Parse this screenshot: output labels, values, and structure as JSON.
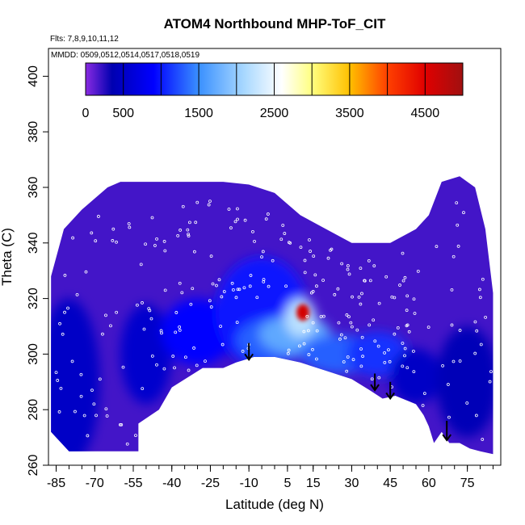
{
  "chart_data": {
    "type": "heatmap",
    "title": "ATOM4 Northbound MHP-ToF_CIT",
    "flights_note": "Flts: 7,8,9,10,11,12",
    "dates_note": "MMDD: 0509,0512,0514,0517,0518,0519",
    "xlabel": "Latitude (deg N)",
    "ylabel": "Theta (C)",
    "xlim": [
      -88,
      88
    ],
    "ylim": [
      260,
      410
    ],
    "x_ticks": [
      -85,
      -70,
      -55,
      -40,
      -25,
      -10,
      5,
      15,
      30,
      45,
      60,
      75
    ],
    "x_ticks_minor_step": 5,
    "y_ticks": [
      260,
      280,
      300,
      320,
      340,
      360,
      380,
      400
    ],
    "colorbar": {
      "range": [
        0,
        5000
      ],
      "labels": [
        0,
        500,
        1500,
        2500,
        3500,
        4500
      ],
      "divisions": [
        500,
        1000,
        1500,
        2000,
        2500,
        3000,
        3500,
        4000,
        4500
      ],
      "stops": [
        {
          "v": 0,
          "c": "#8a2be2"
        },
        {
          "v": 350,
          "c": "#0000b0"
        },
        {
          "v": 900,
          "c": "#0000ff"
        },
        {
          "v": 1500,
          "c": "#3a90ff"
        },
        {
          "v": 2100,
          "c": "#a8d8ff"
        },
        {
          "v": 2600,
          "c": "#ffffff"
        },
        {
          "v": 3000,
          "c": "#ffff80"
        },
        {
          "v": 3500,
          "c": "#ffc000"
        },
        {
          "v": 4000,
          "c": "#ff4000"
        },
        {
          "v": 4500,
          "c": "#e00000"
        },
        {
          "v": 5000,
          "c": "#a01010"
        }
      ]
    },
    "field_top_boundary": [
      [
        -87,
        328
      ],
      [
        -82,
        345
      ],
      [
        -75,
        352
      ],
      [
        -70,
        356
      ],
      [
        -65,
        360
      ],
      [
        -60,
        362
      ],
      [
        -20,
        362
      ],
      [
        -10,
        361
      ],
      [
        0,
        358
      ],
      [
        10,
        350
      ],
      [
        20,
        345
      ],
      [
        30,
        340
      ],
      [
        45,
        340
      ],
      [
        55,
        345
      ],
      [
        60,
        350
      ],
      [
        65,
        362
      ],
      [
        72,
        364
      ],
      [
        78,
        360
      ],
      [
        82,
        345
      ],
      [
        85,
        322
      ]
    ],
    "field_bottom_boundary": [
      [
        -87,
        272
      ],
      [
        -80,
        265
      ],
      [
        -53,
        265
      ],
      [
        -53,
        275
      ],
      [
        -45,
        280
      ],
      [
        -40,
        288
      ],
      [
        -28,
        295
      ],
      [
        -20,
        295
      ],
      [
        -15,
        297
      ],
      [
        -8,
        299
      ],
      [
        0,
        299
      ],
      [
        10,
        297
      ],
      [
        20,
        294
      ],
      [
        30,
        291
      ],
      [
        37,
        287
      ],
      [
        42,
        284
      ],
      [
        47,
        285
      ],
      [
        55,
        282
      ],
      [
        58,
        278
      ],
      [
        60,
        274
      ],
      [
        62,
        268
      ],
      [
        65,
        272
      ],
      [
        68,
        268
      ],
      [
        72,
        268
      ],
      [
        76,
        266
      ],
      [
        80,
        265
      ],
      [
        85,
        264
      ]
    ],
    "concentration_blobs": [
      {
        "lat": -80,
        "theta": 290,
        "value": 500,
        "rx": 12,
        "ry": 30
      },
      {
        "lat": -50,
        "theta": 300,
        "value": 550,
        "rx": 10,
        "ry": 18
      },
      {
        "lat": -30,
        "theta": 308,
        "value": 900,
        "rx": 14,
        "ry": 12
      },
      {
        "lat": -5,
        "theta": 315,
        "value": 1000,
        "rx": 18,
        "ry": 20
      },
      {
        "lat": 0,
        "theta": 305,
        "value": 1300,
        "rx": 15,
        "ry": 8
      },
      {
        "lat": 8,
        "theta": 307,
        "value": 1700,
        "rx": 14,
        "ry": 7
      },
      {
        "lat": 10,
        "theta": 313,
        "value": 2200,
        "rx": 6,
        "ry": 7
      },
      {
        "lat": 11,
        "theta": 315,
        "value": 4600,
        "rx": 2.5,
        "ry": 3
      },
      {
        "lat": 25,
        "theta": 300,
        "value": 1300,
        "rx": 15,
        "ry": 7
      },
      {
        "lat": 40,
        "theta": 300,
        "value": 1100,
        "rx": 12,
        "ry": 8
      },
      {
        "lat": 55,
        "theta": 292,
        "value": 500,
        "rx": 10,
        "ry": 10
      },
      {
        "lat": 75,
        "theta": 290,
        "value": 400,
        "rx": 12,
        "ry": 20
      }
    ],
    "arrows": [
      {
        "lat": -10,
        "theta_top": 304,
        "theta_bottom": 298
      },
      {
        "lat": 39,
        "theta_top": 293,
        "theta_bottom": 287
      },
      {
        "lat": 45,
        "theta_top": 290,
        "theta_bottom": 284
      },
      {
        "lat": 67,
        "theta_top": 276,
        "theta_bottom": 269
      }
    ],
    "sample_point_color": "#ffffff"
  }
}
